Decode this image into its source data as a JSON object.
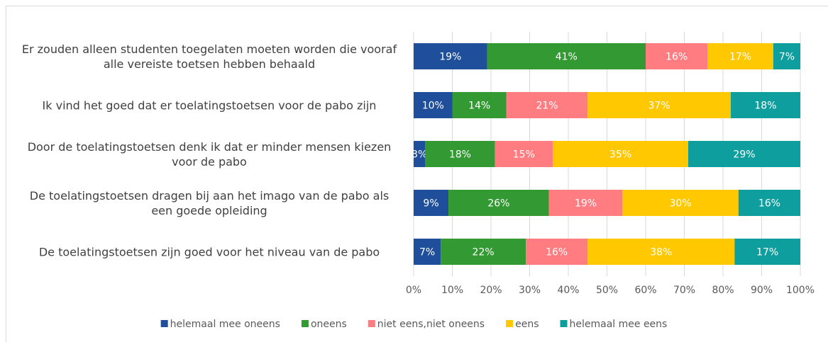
{
  "chart_data": {
    "type": "bar",
    "orientation": "horizontal",
    "stacked": true,
    "categories": [
      "Er zouden alleen studenten toegelaten moeten worden die vooraf alle vereiste toetsen hebben behaald",
      "Ik vind het goed dat er toelatingstoetsen voor de pabo zijn",
      "Door de toelatingstoetsen denk ik dat er minder mensen kiezen voor de pabo",
      "De toelatingstoetsen dragen bij aan het imago van de pabo als een goede opleiding",
      "De toelatingstoetsen zijn goed voor het niveau van de pabo"
    ],
    "series": [
      {
        "name": "helemaal mee oneens",
        "color": "#1f4e9a",
        "values": [
          19,
          10,
          3,
          9,
          7
        ],
        "value_labels": [
          "19%",
          "10%",
          "3%",
          "9%",
          "7%"
        ]
      },
      {
        "name": "oneens",
        "color": "#339933",
        "values": [
          41,
          14,
          18,
          26,
          22
        ],
        "value_labels": [
          "41%",
          "14%",
          "18%",
          "26%",
          "22%"
        ]
      },
      {
        "name": "niet eens,niet oneens",
        "color": "#ff7c80",
        "values": [
          16,
          21,
          15,
          19,
          16
        ],
        "value_labels": [
          "16%",
          "21%",
          "15%",
          "19%",
          "16%"
        ]
      },
      {
        "name": "eens",
        "color": "#ffc800",
        "values": [
          17,
          37,
          35,
          30,
          38
        ],
        "value_labels": [
          "17%",
          "37%",
          "35%",
          "30%",
          "38%"
        ]
      },
      {
        "name": "helemaal mee eens",
        "color": "#0f9e9e",
        "values": [
          7,
          18,
          29,
          16,
          17
        ],
        "value_labels": [
          "7%",
          "18%",
          "29%",
          "16%",
          "17%"
        ]
      }
    ],
    "xlim": [
      0,
      100
    ],
    "xticks": [
      {
        "value": 0,
        "label": "0%"
      },
      {
        "value": 10,
        "label": "10%"
      },
      {
        "value": 20,
        "label": "20%"
      },
      {
        "value": 30,
        "label": "30%"
      },
      {
        "value": 40,
        "label": "40%"
      },
      {
        "value": 50,
        "label": "50%"
      },
      {
        "value": 60,
        "label": "60%"
      },
      {
        "value": 70,
        "label": "70%"
      },
      {
        "value": 80,
        "label": "80%"
      },
      {
        "value": 90,
        "label": "90%"
      },
      {
        "value": 100,
        "label": "100%"
      }
    ],
    "grid": true,
    "legend": "bottom"
  }
}
